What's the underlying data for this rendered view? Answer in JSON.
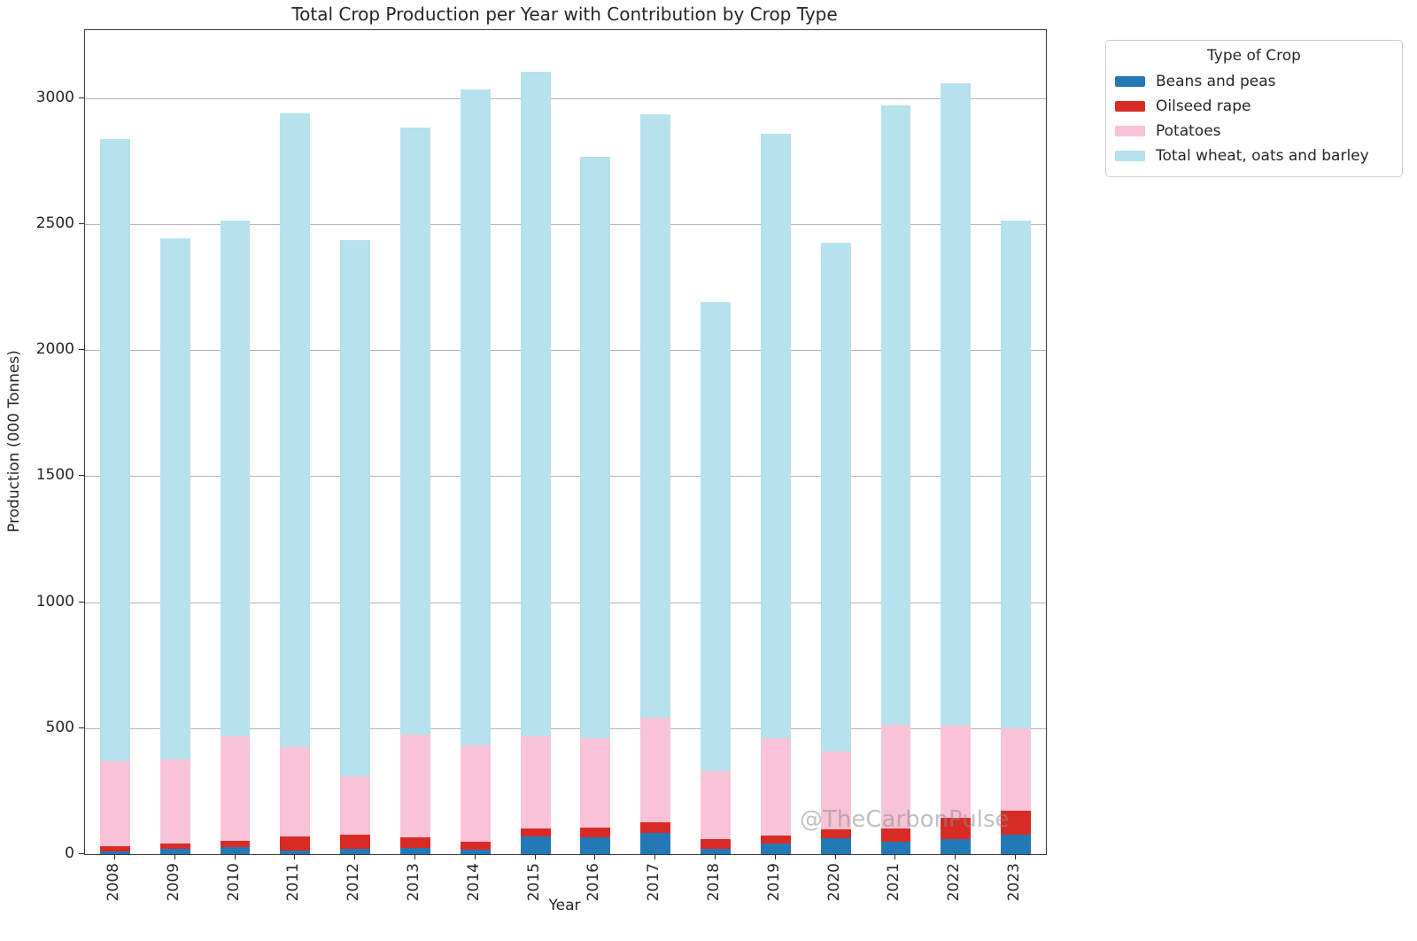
{
  "watermark": "@TheCarbonPulse",
  "chart_data": {
    "type": "bar",
    "stacked": true,
    "title": "Total Crop Production per Year with Contribution by Crop Type",
    "xlabel": "Year",
    "ylabel": "Production (000 Tonnes)",
    "legend_title": "Type of Crop",
    "legend_position": "upper right, outside axes",
    "grid": true,
    "ylim": [
      0,
      3270
    ],
    "yticks": [
      0,
      500,
      1000,
      1500,
      2000,
      2500,
      3000
    ],
    "categories": [
      "2008",
      "2009",
      "2010",
      "2011",
      "2012",
      "2013",
      "2014",
      "2015",
      "2016",
      "2017",
      "2018",
      "2019",
      "2020",
      "2021",
      "2022",
      "2023"
    ],
    "series": [
      {
        "name": "Beans and peas",
        "color": "#2379B6",
        "values": [
          12,
          22,
          27,
          15,
          20,
          24,
          18,
          71,
          68,
          83,
          20,
          41,
          63,
          50,
          59,
          77
        ]
      },
      {
        "name": "Oilseed rape",
        "color": "#D92B26",
        "values": [
          20,
          20,
          26,
          55,
          57,
          44,
          32,
          32,
          38,
          43,
          39,
          32,
          35,
          53,
          84,
          97
        ]
      },
      {
        "name": "Potatoes",
        "color": "#F8C3D6",
        "values": [
          339,
          336,
          416,
          357,
          231,
          407,
          384,
          364,
          353,
          416,
          273,
          389,
          309,
          409,
          367,
          326
        ]
      },
      {
        "name": "Total wheat, oats and barley",
        "color": "#B5E2EC",
        "values": [
          2468,
          2067,
          2046,
          2513,
          2127,
          2410,
          2601,
          2638,
          2307,
          2393,
          1858,
          2398,
          2018,
          2458,
          2550,
          2015
        ]
      }
    ],
    "totals": [
      2839,
      2445,
      2515,
      2940,
      2435,
      2885,
      3035,
      3105,
      2766,
      2935,
      2190,
      2860,
      2425,
      2970,
      3060,
      2515
    ],
    "colors": {
      "spine": "#3a3a3a",
      "grid": "#b3b3b3",
      "tick_text": "#262626",
      "watermark": "#8e8e8e"
    }
  }
}
